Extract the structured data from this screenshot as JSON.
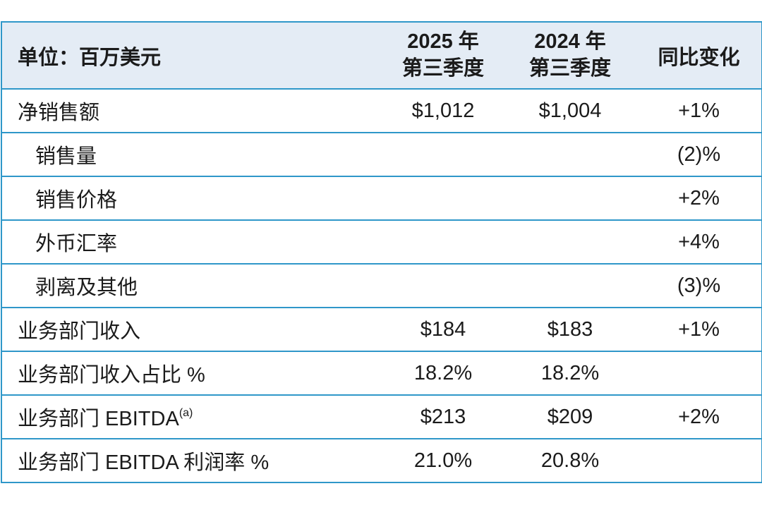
{
  "header": {
    "unit_label": "单位：百万美元",
    "col_q3_2025_line1": "2025 年",
    "col_q3_2025_line2": "第三季度",
    "col_q3_2024_line1": "2024 年",
    "col_q3_2024_line2": "第三季度",
    "col_change": "同比变化"
  },
  "rows": [
    {
      "label": "净销售额",
      "q3_2025": "$1,012",
      "q3_2024": "$1,004",
      "yoy_change": "+1%"
    },
    {
      "label": "销售量",
      "q3_2025": "",
      "q3_2024": "",
      "yoy_change": "(2)%"
    },
    {
      "label": "销售价格",
      "q3_2025": "",
      "q3_2024": "",
      "yoy_change": "+2%"
    },
    {
      "label": "外币汇率",
      "q3_2025": "",
      "q3_2024": "",
      "yoy_change": "+4%"
    },
    {
      "label": "剥离及其他",
      "q3_2025": "",
      "q3_2024": "",
      "yoy_change": "(3)%"
    },
    {
      "label": "业务部门收入",
      "q3_2025": "$184",
      "q3_2024": "$183",
      "yoy_change": "+1%"
    },
    {
      "label": "业务部门收入占比 %",
      "q3_2025": "18.2%",
      "q3_2024": "18.2%",
      "yoy_change": ""
    },
    {
      "label": "业务部门 EBITDA",
      "label_superscript": "(a)",
      "q3_2025": "$213",
      "q3_2024": "$209",
      "yoy_change": "+2%"
    },
    {
      "label": "业务部门 EBITDA 利润率 %",
      "q3_2025": "21.0%",
      "q3_2024": "20.8%",
      "yoy_change": ""
    }
  ],
  "colors": {
    "line_blue": "#2f97c9",
    "header_bg": "#e4ecf5",
    "text": "#1b1b1b"
  }
}
